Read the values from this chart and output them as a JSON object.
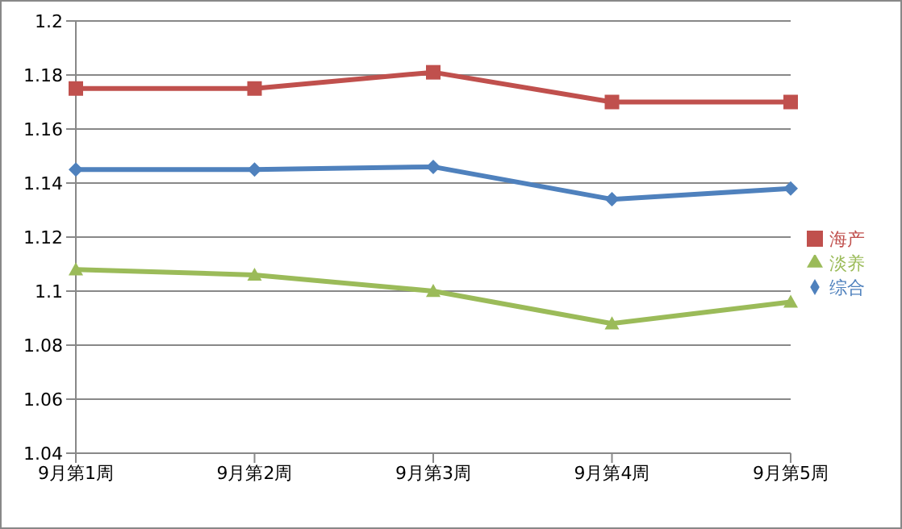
{
  "chart_data": {
    "type": "line",
    "categories": [
      "9月第1周",
      "9月第2周",
      "9月第3周",
      "9月第4周",
      "9月第5周"
    ],
    "series": [
      {
        "name": "综合",
        "color": "#4f81bd",
        "marker": "diamond",
        "values": [
          1.145,
          1.145,
          1.146,
          1.134,
          1.138
        ]
      },
      {
        "name": "海产",
        "color": "#c0504d",
        "marker": "square",
        "values": [
          1.175,
          1.175,
          1.181,
          1.17,
          1.17
        ]
      },
      {
        "name": "淡养",
        "color": "#9bbb59",
        "marker": "triangle",
        "values": [
          1.108,
          1.106,
          1.1,
          1.088,
          1.096
        ]
      }
    ],
    "ylim": [
      1.04,
      1.2
    ],
    "yticks": [
      1.04,
      1.06,
      1.08,
      {
        "value": 1.1,
        "label": "1.1"
      },
      1.12,
      1.14,
      1.16,
      1.18,
      {
        "value": 1.2,
        "label": "1.2"
      }
    ],
    "grid": "y",
    "legend": "right",
    "line_style": "solid"
  }
}
